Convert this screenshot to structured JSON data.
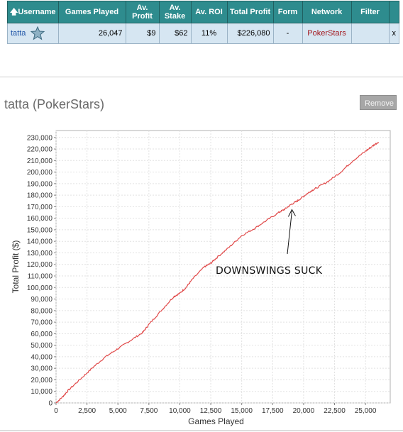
{
  "table": {
    "headers": [
      {
        "label": "Username",
        "sort_icon": "up-arrow-icon"
      },
      {
        "label": "Games Played"
      },
      {
        "label": "Av. Profit"
      },
      {
        "label": "Av. Stake"
      },
      {
        "label": "Av. ROI"
      },
      {
        "label": "Total Profit"
      },
      {
        "label": "Form"
      },
      {
        "label": "Network"
      },
      {
        "label": "Filter"
      },
      {
        "label": ""
      }
    ],
    "row": {
      "username": "tatta",
      "avatar_icon": "star-avatar-icon",
      "games_played": "26,047",
      "av_profit": "$9",
      "av_stake": "$62",
      "av_roi": "11%",
      "total_profit": "$226,080",
      "form": "-",
      "network": "PokerStars",
      "filter": "",
      "remove_label": "x"
    }
  },
  "player_title": "tatta (PokerStars)",
  "remove_button": "Remove",
  "colors": {
    "header_bg": "#2e8c8e",
    "row_bg": "#d6e6f2",
    "line": "#e04848",
    "network": "#a3151b"
  },
  "chart_data": {
    "type": "line",
    "title": "",
    "xlabel": "Games Played",
    "ylabel": "Total Profit ($)",
    "xlim": [
      0,
      27000
    ],
    "ylim": [
      0,
      236000
    ],
    "xticks": [
      0,
      2500,
      5000,
      7500,
      10000,
      12500,
      15000,
      17500,
      20000,
      22500,
      25000
    ],
    "xtick_labels": [
      "0",
      "2,500",
      "5,000",
      "7,500",
      "10,000",
      "12,500",
      "15,000",
      "17,500",
      "20,000",
      "22,500",
      "25,000"
    ],
    "yticks": [
      0,
      10000,
      20000,
      30000,
      40000,
      50000,
      60000,
      70000,
      80000,
      90000,
      100000,
      110000,
      120000,
      130000,
      140000,
      150000,
      160000,
      170000,
      180000,
      190000,
      200000,
      210000,
      220000,
      230000
    ],
    "ytick_labels": [
      "0",
      "10,000",
      "20,000",
      "30,000",
      "40,000",
      "50,000",
      "60,000",
      "70,000",
      "80,000",
      "90,000",
      "100,000",
      "110,000",
      "120,000",
      "130,000",
      "140,000",
      "150,000",
      "160,000",
      "170,000",
      "180,000",
      "190,000",
      "200,000",
      "210,000",
      "220,000",
      "230,000"
    ],
    "grid": true,
    "series": [
      {
        "x": [
          0,
          500,
          1000,
          2000,
          3000,
          4000,
          5000,
          6000,
          7000,
          7500,
          8500,
          9500,
          10000,
          10500,
          11000,
          12000,
          12500,
          13000,
          14000,
          15000,
          16000,
          17000,
          18000,
          18500,
          19000,
          19500,
          20000,
          20500,
          21000,
          22000,
          23000,
          24000,
          25000,
          25500,
          26047
        ],
        "y": [
          0,
          5000,
          11000,
          21000,
          31000,
          40000,
          47000,
          54000,
          61000,
          68000,
          80000,
          92000,
          95000,
          100000,
          107000,
          118000,
          121000,
          126000,
          135000,
          145000,
          151000,
          158000,
          165000,
          168000,
          172000,
          175000,
          179000,
          183000,
          186000,
          192000,
          200000,
          210000,
          218000,
          222000,
          226080
        ]
      }
    ],
    "annotation": {
      "text": "DOWNSWINGS SUCK",
      "arrow_to_x": 19000,
      "arrow_to_y": 170000
    }
  }
}
